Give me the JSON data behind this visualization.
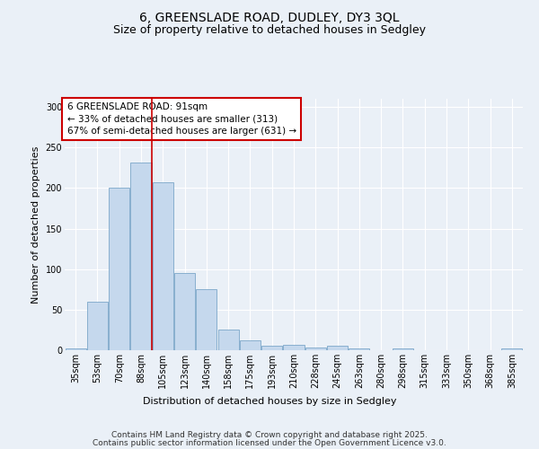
{
  "title_line1": "6, GREENSLADE ROAD, DUDLEY, DY3 3QL",
  "title_line2": "Size of property relative to detached houses in Sedgley",
  "xlabel": "Distribution of detached houses by size in Sedgley",
  "ylabel": "Number of detached properties",
  "bar_color": "#c5d8ed",
  "bar_edge_color": "#7ba7c9",
  "background_color": "#eaf0f7",
  "grid_color": "#ffffff",
  "bins": [
    "35sqm",
    "53sqm",
    "70sqm",
    "88sqm",
    "105sqm",
    "123sqm",
    "140sqm",
    "158sqm",
    "175sqm",
    "193sqm",
    "210sqm",
    "228sqm",
    "245sqm",
    "263sqm",
    "280sqm",
    "298sqm",
    "315sqm",
    "333sqm",
    "350sqm",
    "368sqm",
    "385sqm"
  ],
  "values": [
    2,
    60,
    200,
    231,
    207,
    95,
    75,
    25,
    12,
    5,
    7,
    3,
    5,
    2,
    0,
    2,
    0,
    0,
    0,
    0,
    2
  ],
  "property_bin_index": 3,
  "annotation_text_line1": "6 GREENSLADE ROAD: 91sqm",
  "annotation_text_line2": "← 33% of detached houses are smaller (313)",
  "annotation_text_line3": "67% of semi-detached houses are larger (631) →",
  "annotation_box_color": "#ffffff",
  "annotation_box_edge": "#cc0000",
  "property_line_color": "#cc0000",
  "footer_line1": "Contains HM Land Registry data © Crown copyright and database right 2025.",
  "footer_line2": "Contains public sector information licensed under the Open Government Licence v3.0.",
  "ylim": [
    0,
    310
  ],
  "yticks": [
    0,
    50,
    100,
    150,
    200,
    250,
    300
  ],
  "title_fontsize": 10,
  "subtitle_fontsize": 9,
  "axis_label_fontsize": 8,
  "tick_fontsize": 7,
  "annotation_fontsize": 7.5,
  "footer_fontsize": 6.5
}
